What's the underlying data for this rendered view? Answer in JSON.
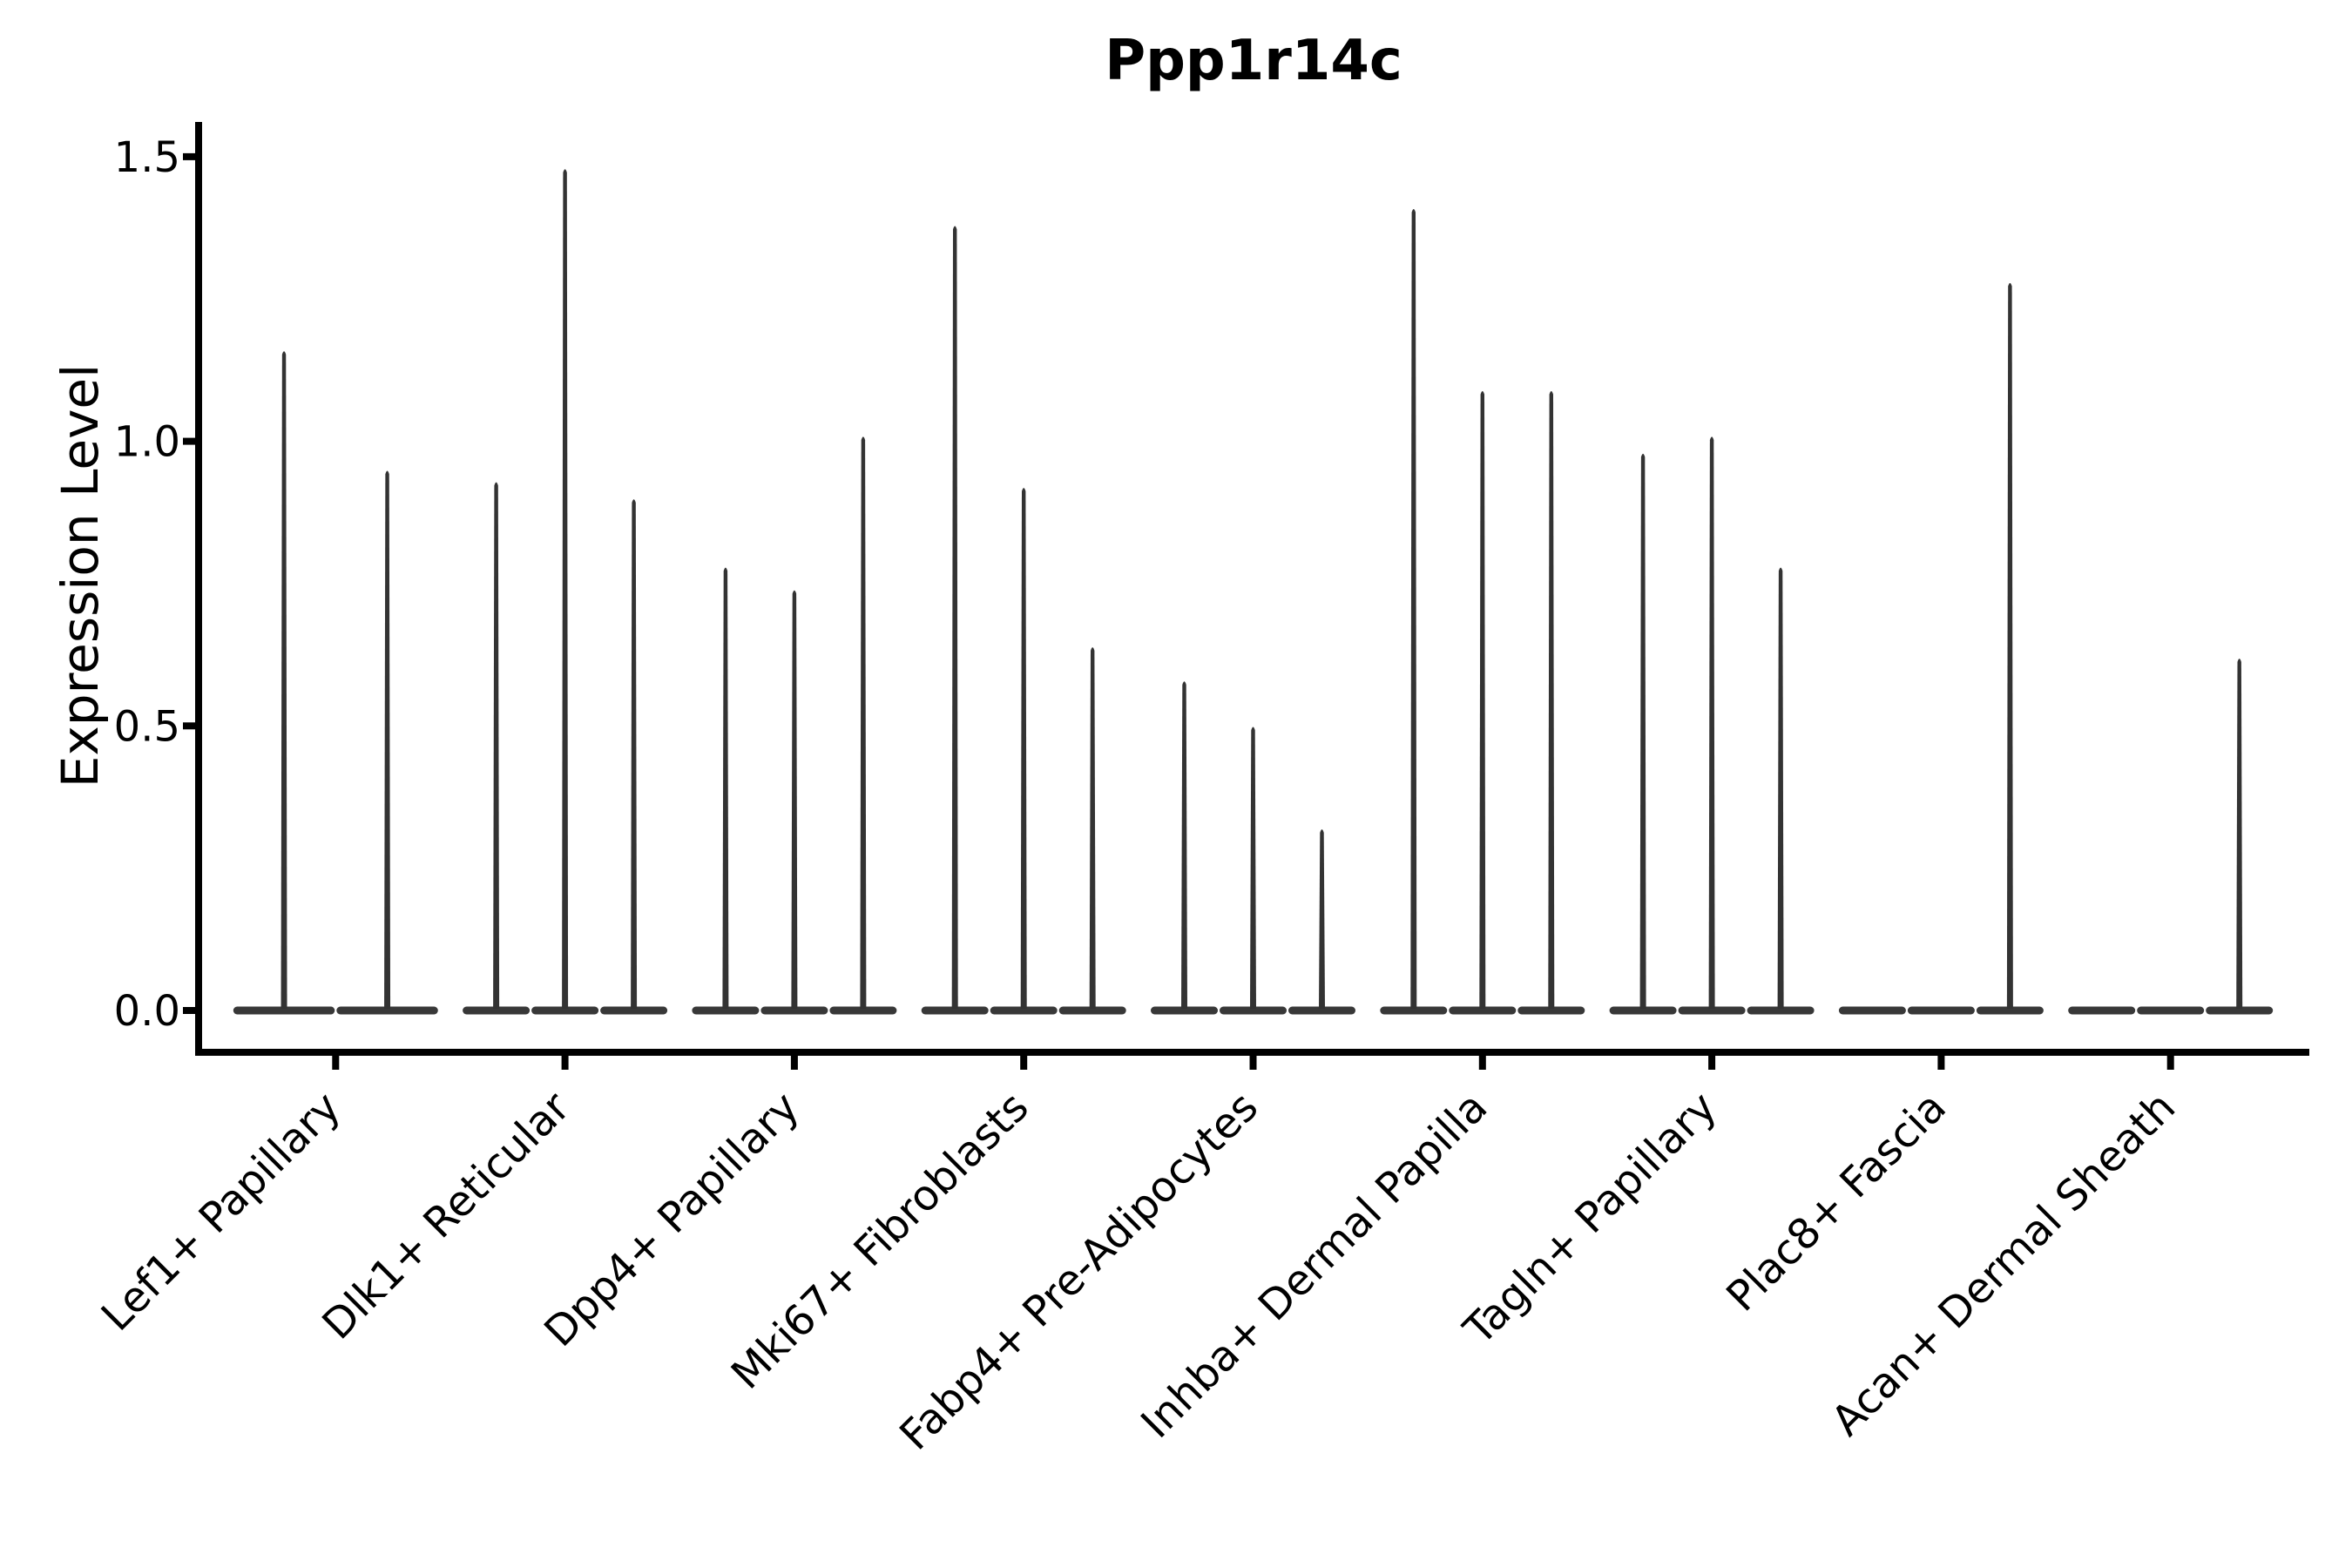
{
  "title": "Ppp1r14c",
  "chart_data": {
    "type": "violin",
    "title": "Ppp1r14c",
    "xlabel": "",
    "ylabel": "Expression Level",
    "categories": [
      "Lef1+ Papillary",
      "Dlk1+ Reticular",
      "Dpp4+ Papillary",
      "Mki67+ Fibroblasts",
      "Fabp4+ Pre-Adipocytes",
      "Inhba+ Dermal Papilla",
      "Tagln+ Papillary",
      "Plac8+ Fascia",
      "Acan+ Dermal Sheath"
    ],
    "series": [
      {
        "category": "Lef1+ Papillary",
        "violin_max_values": [
          1.16,
          0.95
        ]
      },
      {
        "category": "Dlk1+ Reticular",
        "violin_max_values": [
          0.93,
          1.48,
          0.9
        ]
      },
      {
        "category": "Dpp4+ Papillary",
        "violin_max_values": [
          0.78,
          0.74,
          1.01
        ]
      },
      {
        "category": "Mki67+ Fibroblasts",
        "violin_max_values": [
          1.38,
          0.92,
          0.64
        ]
      },
      {
        "category": "Fabp4+ Pre-Adipocytes",
        "violin_max_values": [
          0.58,
          0.5,
          0.32
        ]
      },
      {
        "category": "Inhba+ Dermal Papilla",
        "violin_max_values": [
          1.41,
          1.09,
          1.09
        ]
      },
      {
        "category": "Tagln+ Papillary",
        "violin_max_values": [
          0.98,
          1.01,
          0.78
        ]
      },
      {
        "category": "Plac8+ Fascia",
        "violin_max_values": [
          0.0,
          0.0,
          1.28
        ]
      },
      {
        "category": "Acan+ Dermal Sheath",
        "violin_max_values": [
          0.0,
          0.0,
          0.62
        ]
      }
    ],
    "y_ticks": [
      "0.0",
      "0.5",
      "1.0",
      "1.5"
    ],
    "y_tick_values": [
      0,
      0.5,
      1.0,
      1.5
    ],
    "ylim": [
      -0.07,
      1.56
    ],
    "x_tick_rotation_deg": 45,
    "grid": false,
    "legend_position": "none",
    "violin_color": "#333333",
    "violin_base_color": "#383838",
    "axis_color": "#000000",
    "background_color": "#ffffff"
  }
}
